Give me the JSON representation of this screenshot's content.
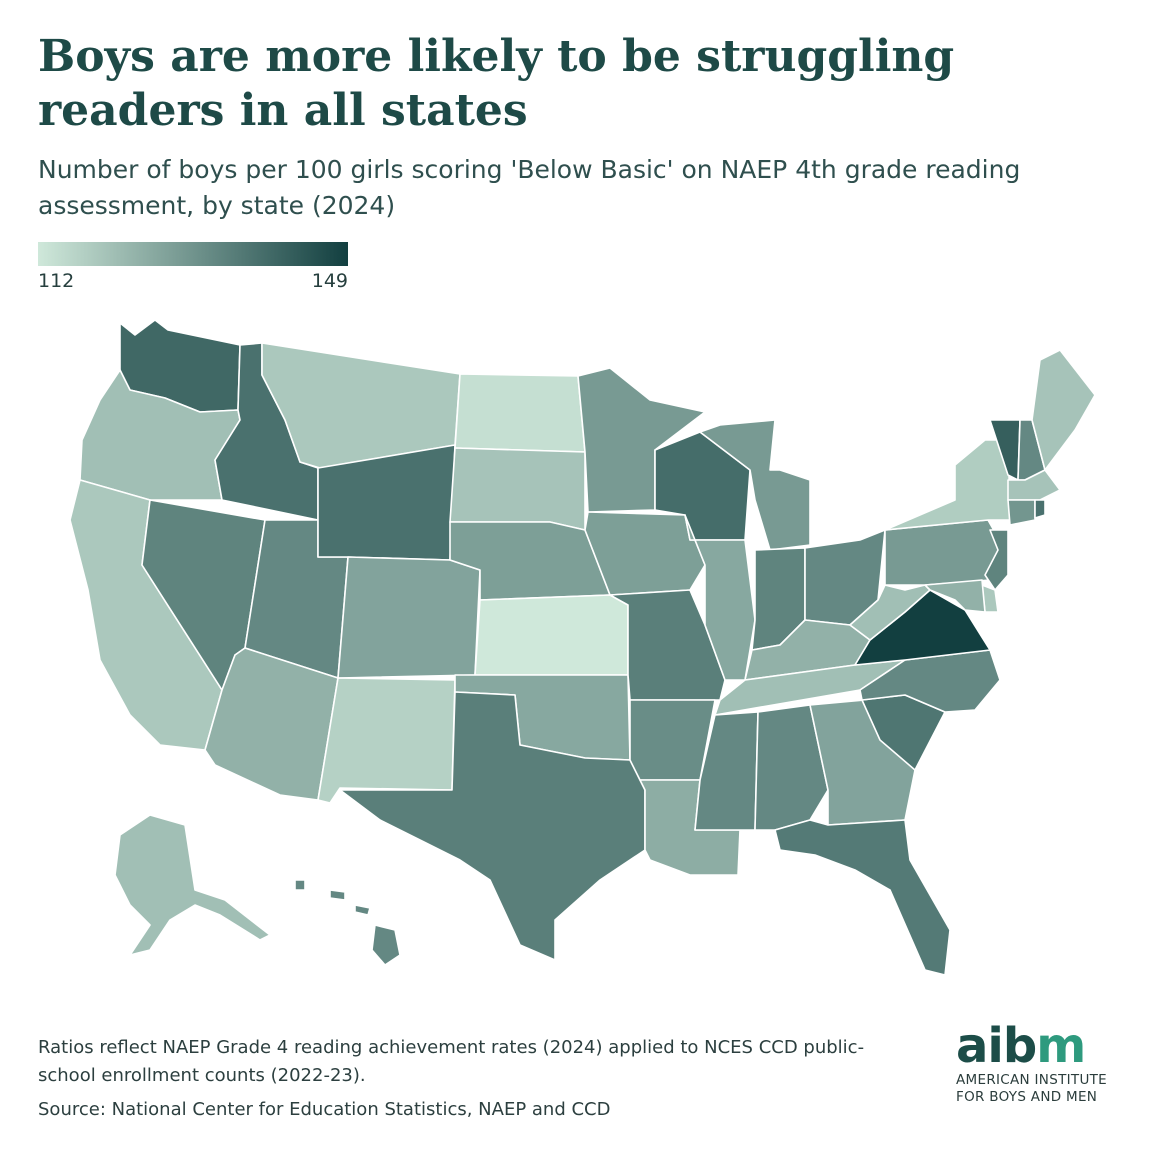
{
  "title": "Boys are more likely to be struggling readers in all states",
  "subtitle": "Number of boys per 100 girls scoring 'Below Basic' on NAEP 4th grade reading assessment, by state (2024)",
  "legend": {
    "min": "112",
    "max": "149",
    "color_low": "#cfe8da",
    "color_high": "#123f40"
  },
  "notes": {
    "method": "Ratios reflect NAEP Grade 4 reading achievement rates (2024) applied to NCES CCD public-school enrollment counts (2022-23).",
    "source": "Source: National Center for Education Statistics, NAEP and CCD"
  },
  "logo": {
    "word_a": "aib",
    "word_b": "m",
    "line1": "AMERICAN INSTITUTE",
    "line2": "FOR BOYS AND MEN",
    "accent_color": "#2e9a7e"
  },
  "map_data": {
    "type": "choropleth",
    "region": "United States",
    "scale_min": 112,
    "scale_max": 149,
    "states": [
      {
        "id": "WA",
        "value": 140
      },
      {
        "id": "OR",
        "value": 121
      },
      {
        "id": "CA",
        "value": 119
      },
      {
        "id": "ID",
        "value": 138
      },
      {
        "id": "NV",
        "value": 134
      },
      {
        "id": "UT",
        "value": 133
      },
      {
        "id": "AZ",
        "value": 124
      },
      {
        "id": "MT",
        "value": 119
      },
      {
        "id": "WY",
        "value": 138
      },
      {
        "id": "CO",
        "value": 127
      },
      {
        "id": "NM",
        "value": 117
      },
      {
        "id": "ND",
        "value": 114
      },
      {
        "id": "SD",
        "value": 120
      },
      {
        "id": "NE",
        "value": 128
      },
      {
        "id": "KS",
        "value": 112
      },
      {
        "id": "OK",
        "value": 126
      },
      {
        "id": "TX",
        "value": 135
      },
      {
        "id": "MN",
        "value": 129
      },
      {
        "id": "IA",
        "value": 128
      },
      {
        "id": "MO",
        "value": 135
      },
      {
        "id": "AR",
        "value": 132
      },
      {
        "id": "LA",
        "value": 125
      },
      {
        "id": "WI",
        "value": 139
      },
      {
        "id": "IL",
        "value": 126
      },
      {
        "id": "MI",
        "value": 129
      },
      {
        "id": "IN",
        "value": 134
      },
      {
        "id": "OH",
        "value": 133
      },
      {
        "id": "KY",
        "value": 124
      },
      {
        "id": "TN",
        "value": 121
      },
      {
        "id": "MS",
        "value": 133
      },
      {
        "id": "AL",
        "value": 133
      },
      {
        "id": "GA",
        "value": 127
      },
      {
        "id": "FL",
        "value": 136
      },
      {
        "id": "SC",
        "value": 137
      },
      {
        "id": "NC",
        "value": 133
      },
      {
        "id": "VA",
        "value": 149
      },
      {
        "id": "WV",
        "value": 121
      },
      {
        "id": "PA",
        "value": 129
      },
      {
        "id": "NY",
        "value": 118
      },
      {
        "id": "VT",
        "value": 142
      },
      {
        "id": "NH",
        "value": 133
      },
      {
        "id": "ME",
        "value": 120
      },
      {
        "id": "MA",
        "value": 120
      },
      {
        "id": "CT",
        "value": 130
      },
      {
        "id": "RI",
        "value": 138
      },
      {
        "id": "NJ",
        "value": 134
      },
      {
        "id": "DE",
        "value": 119
      },
      {
        "id": "MD",
        "value": 124
      },
      {
        "id": "AK",
        "value": 121
      },
      {
        "id": "HI",
        "value": 133
      }
    ]
  }
}
